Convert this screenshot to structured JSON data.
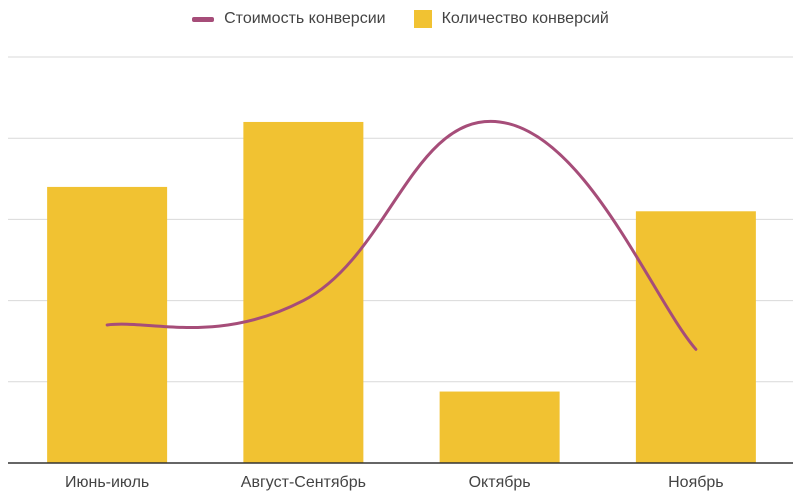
{
  "chart_data": {
    "type": "bar",
    "categories": [
      "Июнь-июль",
      "Август-Сентябрь",
      "Октябрь",
      "Ноябрь"
    ],
    "series": [
      {
        "name": "Количество конверсий",
        "kind": "bar",
        "color": "#f1c232",
        "values": [
          3.4,
          4.2,
          0.88,
          3.1
        ]
      },
      {
        "name": "Стоимость конверсии",
        "kind": "line",
        "color": "#a64d79",
        "values": [
          1.7,
          2.0,
          4.2,
          1.4
        ]
      }
    ],
    "ylim": [
      0,
      5
    ],
    "grid": true,
    "legend": "top-center",
    "title": "",
    "xlabel": "",
    "ylabel": ""
  }
}
